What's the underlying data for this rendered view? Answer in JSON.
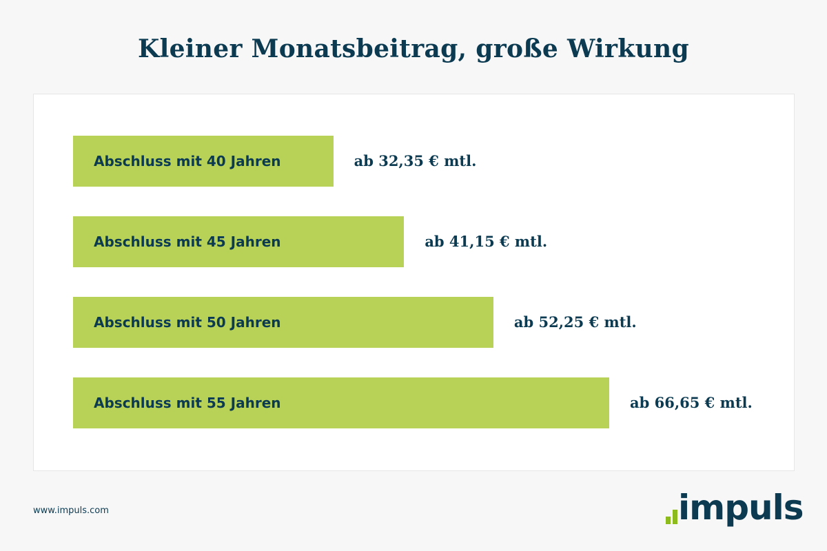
{
  "title": "Kleiner Monatsbeitrag, große Wirkung",
  "chart_data": {
    "type": "bar",
    "orientation": "horizontal",
    "title": "Kleiner Monatsbeitrag, große Wirkung",
    "categories": [
      "Abschluss mit 40 Jahren",
      "Abschluss mit 45 Jahren",
      "Abschluss mit 50 Jahren",
      "Abschluss mit 55 Jahren"
    ],
    "values": [
      32.35,
      41.15,
      52.25,
      66.65
    ],
    "data_labels": [
      "ab 32,35 € mtl.",
      "ab 41,15 € mtl.",
      "ab 52,25 € mtl.",
      "ab 66,65 € mtl."
    ],
    "unit": "€ mtl.",
    "grid": false,
    "bar_color": "#b7d257",
    "text_color": "#0b3a51"
  },
  "footer": {
    "url": "www.impuls.com",
    "logo_text": "impuls"
  },
  "colors": {
    "accent": "#8dbb1e",
    "brand": "#0b3a51",
    "background": "#f7f7f7"
  }
}
